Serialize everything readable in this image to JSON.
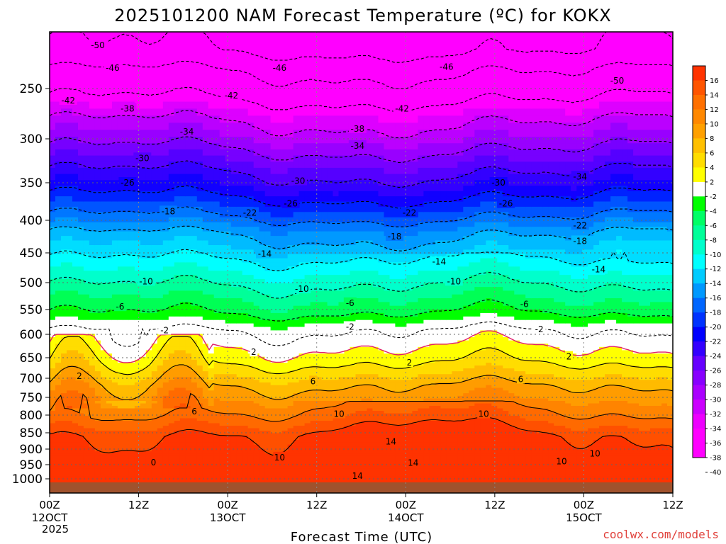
{
  "chart_data": {
    "type": "time-height contour",
    "title": "2025101200 NAM Forecast Temperature (ºC) for KOKX",
    "xlabel": "Forecast Time (UTC)",
    "ylabel": "",
    "credit": "coolwx.com/models",
    "year_label": "2025",
    "x_ticks": [
      {
        "hour": 0,
        "label": "00Z",
        "date": "12OCT"
      },
      {
        "hour": 12,
        "label": "12Z",
        "date": ""
      },
      {
        "hour": 24,
        "label": "00Z",
        "date": "13OCT"
      },
      {
        "hour": 36,
        "label": "12Z",
        "date": ""
      },
      {
        "hour": 48,
        "label": "00Z",
        "date": "14OCT"
      },
      {
        "hour": 60,
        "label": "12Z",
        "date": ""
      },
      {
        "hour": 72,
        "label": "00Z",
        "date": "15OCT"
      },
      {
        "hour": 84,
        "label": "12Z",
        "date": ""
      }
    ],
    "y_ticks": [
      250,
      300,
      350,
      400,
      450,
      500,
      550,
      600,
      650,
      700,
      750,
      800,
      850,
      900,
      950,
      1000
    ],
    "y_range_hpa": [
      200,
      1020
    ],
    "x_range_hours": [
      0,
      84
    ],
    "colorbar": {
      "labels": [
        "16",
        "14",
        "12",
        "10",
        "8",
        "6",
        "4",
        "2",
        "-2",
        "-4",
        "-6",
        "-8",
        "-10",
        "-12",
        "-14",
        "-16",
        "-18",
        "-20",
        "-22",
        "-24",
        "-26",
        "-28",
        "-30",
        "-32",
        "-34",
        "-36",
        "-38",
        "-40"
      ],
      "colors": [
        "#ff3300",
        "#ff5500",
        "#ff7000",
        "#ff8800",
        "#ffa000",
        "#ffc000",
        "#ffdd00",
        "#ffff00",
        "#ffffff",
        "#00ff00",
        "#00ff66",
        "#00ff99",
        "#00ffcc",
        "#00ffff",
        "#00ccff",
        "#0099ff",
        "#0066ff",
        "#0033ff",
        "#0000ff",
        "#3300ff",
        "#6600ff",
        "#8800ff",
        "#aa00ff",
        "#cc00ff",
        "#ee00ff",
        "#ff00ff",
        "#ff00ff"
      ]
    },
    "isotherm_levels_hpa": [
      {
        "temp": -50,
        "p": 215
      },
      {
        "temp": -46,
        "p": 232
      },
      {
        "temp": -42,
        "p": 258
      },
      {
        "temp": -38,
        "p": 280
      },
      {
        "temp": -34,
        "p": 308
      },
      {
        "temp": -30,
        "p": 335
      },
      {
        "temp": -26,
        "p": 365
      },
      {
        "temp": -22,
        "p": 392
      },
      {
        "temp": -18,
        "p": 418
      },
      {
        "temp": -14,
        "p": 460
      },
      {
        "temp": -10,
        "p": 505
      },
      {
        "temp": -6,
        "p": 558
      },
      {
        "temp": -2,
        "p": 592
      },
      {
        "temp": 2,
        "p": 665
      },
      {
        "temp": 6,
        "p": 720
      },
      {
        "temp": 10,
        "p": 800
      },
      {
        "temp": 14,
        "p": 862
      }
    ],
    "labels_on_plot": [
      {
        "text": "-50",
        "hour": 6.5,
        "p": 212
      },
      {
        "text": "-46",
        "hour": 8.5,
        "p": 232
      },
      {
        "text": "-46",
        "hour": 31,
        "p": 232
      },
      {
        "text": "-46",
        "hour": 53.5,
        "p": 231
      },
      {
        "text": "-50",
        "hour": 76.5,
        "p": 243
      },
      {
        "text": "-42",
        "hour": 2.5,
        "p": 262
      },
      {
        "text": "-42",
        "hour": 24.5,
        "p": 257
      },
      {
        "text": "-42",
        "hour": 47.5,
        "p": 270
      },
      {
        "text": "-38",
        "hour": 10.5,
        "p": 270
      },
      {
        "text": "-38",
        "hour": 41.5,
        "p": 290
      },
      {
        "text": "-34",
        "hour": 18.5,
        "p": 293
      },
      {
        "text": "-34",
        "hour": 41.5,
        "p": 308
      },
      {
        "text": "-34",
        "hour": 71.5,
        "p": 343
      },
      {
        "text": "-30",
        "hour": 12.5,
        "p": 322
      },
      {
        "text": "-30",
        "hour": 33.5,
        "p": 348
      },
      {
        "text": "-30",
        "hour": 60.5,
        "p": 350
      },
      {
        "text": "-26",
        "hour": 10.5,
        "p": 350
      },
      {
        "text": "-26",
        "hour": 32.5,
        "p": 378
      },
      {
        "text": "-26",
        "hour": 61.5,
        "p": 378
      },
      {
        "text": "-22",
        "hour": 27,
        "p": 390
      },
      {
        "text": "-22",
        "hour": 48.5,
        "p": 390
      },
      {
        "text": "-22",
        "hour": 71.5,
        "p": 408
      },
      {
        "text": "-18",
        "hour": 16,
        "p": 388
      },
      {
        "text": "-18",
        "hour": 46.5,
        "p": 425
      },
      {
        "text": "-18",
        "hour": 71.5,
        "p": 432
      },
      {
        "text": "-14",
        "hour": 29,
        "p": 452
      },
      {
        "text": "-14",
        "hour": 52.5,
        "p": 465
      },
      {
        "text": "-14",
        "hour": 74,
        "p": 478
      },
      {
        "text": "-10",
        "hour": 13,
        "p": 498
      },
      {
        "text": "-10",
        "hour": 34,
        "p": 512
      },
      {
        "text": "-10",
        "hour": 54.5,
        "p": 498
      },
      {
        "text": "-6",
        "hour": 9.5,
        "p": 545
      },
      {
        "text": "-6",
        "hour": 40.5,
        "p": 538
      },
      {
        "text": "-6",
        "hour": 64,
        "p": 540
      },
      {
        "text": "-2",
        "hour": 15.5,
        "p": 592
      },
      {
        "text": "-2",
        "hour": 40.5,
        "p": 585
      },
      {
        "text": "-2",
        "hour": 66,
        "p": 590
      },
      {
        "text": "2",
        "hour": 27.5,
        "p": 638
      },
      {
        "text": "2",
        "hour": 48.5,
        "p": 662
      },
      {
        "text": "2",
        "hour": 70,
        "p": 648
      },
      {
        "text": "2",
        "hour": 4,
        "p": 695
      },
      {
        "text": "6",
        "hour": 35.5,
        "p": 708
      },
      {
        "text": "6",
        "hour": 63.5,
        "p": 703
      },
      {
        "text": "6",
        "hour": 19.5,
        "p": 790
      },
      {
        "text": "10",
        "hour": 39,
        "p": 797
      },
      {
        "text": "10",
        "hour": 58.5,
        "p": 797
      },
      {
        "text": "10",
        "hour": 31,
        "p": 927
      },
      {
        "text": "10",
        "hour": 73.5,
        "p": 915
      },
      {
        "text": "10",
        "hour": 69,
        "p": 940
      },
      {
        "text": "14",
        "hour": 46,
        "p": 877
      },
      {
        "text": "14",
        "hour": 49,
        "p": 944
      },
      {
        "text": "14",
        "hour": 41.5,
        "p": 990
      },
      {
        "text": "0",
        "hour": 14,
        "p": 943
      }
    ]
  }
}
